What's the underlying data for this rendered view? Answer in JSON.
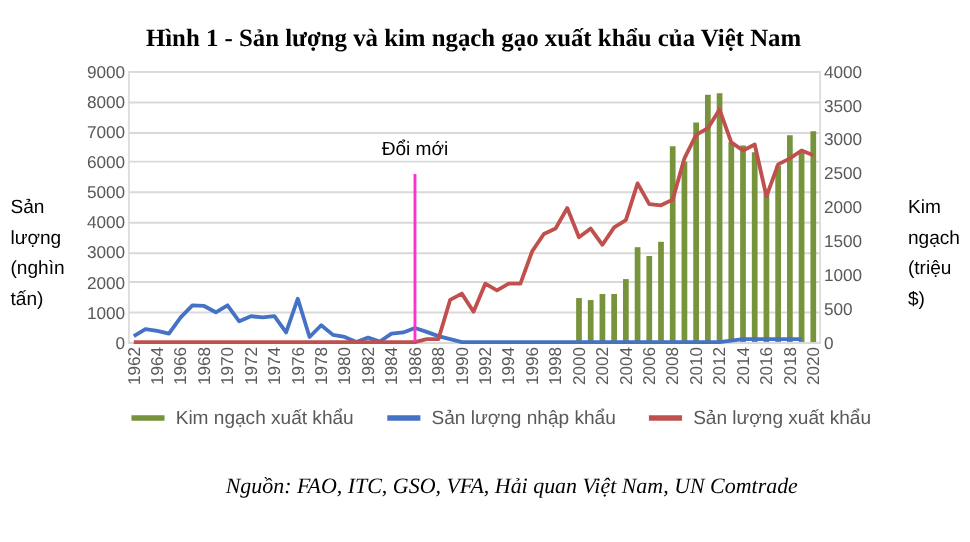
{
  "chart_data": {
    "type": "bar",
    "title": "Hình 1 - Sản lượng và kim ngạch gạo xuất khẩu của Việt Nam",
    "ylabel": "Sản lượng (nghìn tấn)",
    "y2label": "Kim ngạch (triệu $)",
    "categories": [
      "1962",
      null,
      "1964",
      null,
      "1966",
      null,
      "1968",
      null,
      "1970",
      null,
      "1972",
      null,
      "1974",
      null,
      "1976",
      null,
      "1978",
      null,
      "1980",
      null,
      "1982",
      null,
      "1984",
      null,
      "1986",
      null,
      "1988",
      null,
      "1990",
      null,
      "1992",
      null,
      "1994",
      null,
      "1996",
      null,
      "1998",
      null,
      "2000",
      null,
      "2002",
      null,
      "2004",
      null,
      "2006",
      null,
      "2008",
      null,
      "2010",
      null,
      "2012",
      null,
      "2014",
      null,
      "2016",
      null,
      "2018",
      null,
      "2020"
    ],
    "series": [
      {
        "name": "Kim ngạch xuất khẩu",
        "axis": "y2",
        "color": "#77933c",
        "values": [
          null,
          null,
          null,
          null,
          null,
          null,
          null,
          null,
          null,
          null,
          null,
          null,
          null,
          null,
          null,
          null,
          null,
          null,
          null,
          null,
          null,
          null,
          null,
          null,
          null,
          null,
          null,
          null,
          null,
          null,
          null,
          null,
          null,
          null,
          null,
          null,
          null,
          null,
          650,
          620,
          710,
          710,
          930,
          1400,
          1270,
          1480,
          2890,
          2660,
          3240,
          3650,
          3670,
          2950,
          2900,
          2800,
          2200,
          2600,
          3050,
          2800,
          3110
        ]
      },
      {
        "name": "Sản lượng nhập khẩu",
        "type": "line",
        "color": "#4472c4",
        "values": [
          200,
          430,
          370,
          280,
          820,
          1220,
          1200,
          990,
          1220,
          690,
          860,
          820,
          860,
          320,
          1440,
          170,
          560,
          240,
          170,
          0,
          150,
          20,
          280,
          320,
          470,
          340,
          200,
          100,
          0,
          0,
          0,
          0,
          0,
          0,
          0,
          0,
          0,
          0,
          0,
          0,
          0,
          0,
          0,
          0,
          0,
          0,
          0,
          0,
          0,
          0,
          0,
          50,
          100,
          100,
          100,
          100,
          100,
          100,
          null
        ]
      },
      {
        "name": "Sản lượng xuất khẩu",
        "type": "line",
        "color": "#c0504d",
        "values": [
          0,
          0,
          0,
          0,
          0,
          0,
          0,
          0,
          0,
          0,
          0,
          0,
          0,
          0,
          0,
          0,
          0,
          0,
          0,
          0,
          0,
          0,
          0,
          0,
          0,
          100,
          100,
          1400,
          1610,
          1010,
          1940,
          1720,
          1940,
          1940,
          3010,
          3590,
          3770,
          4450,
          3480,
          3770,
          3230,
          3810,
          4050,
          5270,
          4580,
          4540,
          4730,
          6100,
          6880,
          7100,
          7720,
          6630,
          6360,
          6560,
          4840,
          5900,
          6100,
          6360,
          6200
        ]
      }
    ],
    "ylim": [
      0,
      9000
    ],
    "yticks": [
      0,
      1000,
      2000,
      3000,
      4000,
      5000,
      6000,
      7000,
      8000,
      9000
    ],
    "y2lim": [
      0,
      4000
    ],
    "y2ticks": [
      0,
      500,
      1000,
      1500,
      2000,
      2500,
      3000,
      3500,
      4000
    ],
    "ref_lines": [
      {
        "axis": "x",
        "value": "1986",
        "label": "Đổi mới",
        "color": "#ff33cc"
      }
    ],
    "grid": "y",
    "legend": "bottom",
    "annotations": [
      "Nguồn: FAO, ITC, GSO, VFA, Hải quan Việt Nam, UN Comtrade"
    ]
  }
}
